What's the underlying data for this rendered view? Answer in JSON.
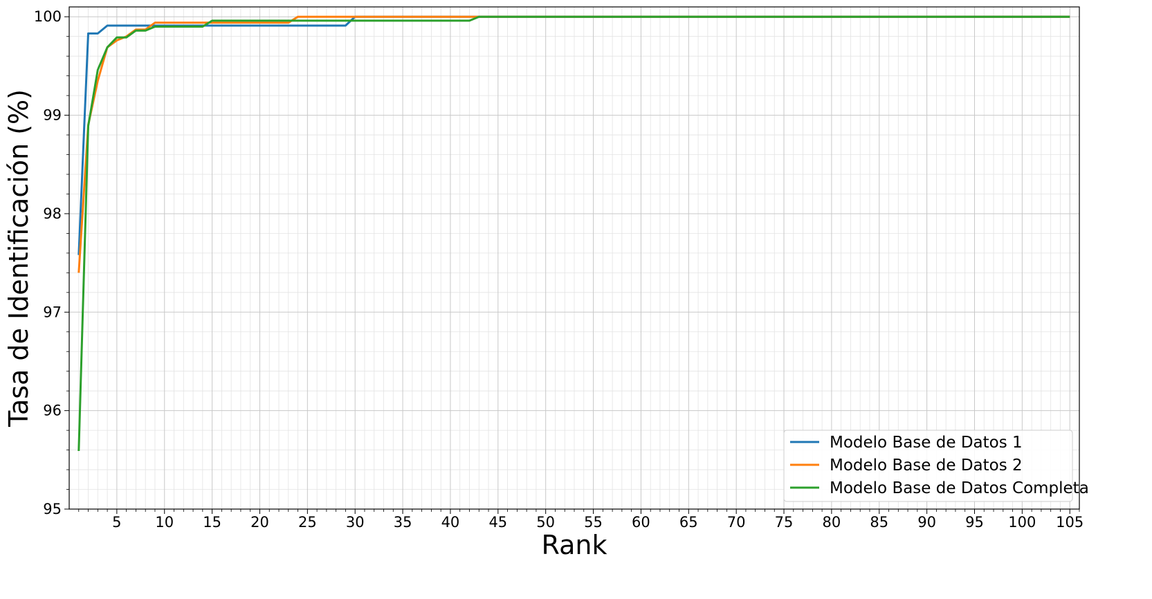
{
  "chart_data": {
    "type": "line",
    "title": "",
    "xlabel": "Rank",
    "ylabel": "Tasa de Identificación (%)",
    "xlim": [
      0,
      106
    ],
    "ylim": [
      95,
      100.1
    ],
    "xticks": [
      "5",
      "10",
      "15",
      "20",
      "25",
      "30",
      "35",
      "40",
      "45",
      "50",
      "55",
      "60",
      "65",
      "70",
      "75",
      "80",
      "85",
      "90",
      "95",
      "100",
      "105"
    ],
    "yticks": [
      "95",
      "96",
      "97",
      "98",
      "99",
      "100"
    ],
    "grid": true,
    "minor_grid": true,
    "legend_position": "lower-right",
    "series": [
      {
        "name": "Modelo Base de Datos 1",
        "color": "#1f77b4",
        "points": [
          [
            1,
            97.58
          ],
          [
            2,
            99.83
          ],
          [
            3,
            99.83
          ],
          [
            4,
            99.91
          ],
          [
            29,
            99.91
          ],
          [
            30,
            100.0
          ],
          [
            105,
            100.0
          ]
        ]
      },
      {
        "name": "Modelo Base de Datos 2",
        "color": "#ff7f0e",
        "points": [
          [
            1,
            97.4
          ],
          [
            2,
            98.9
          ],
          [
            3,
            99.35
          ],
          [
            4,
            99.69
          ],
          [
            5,
            99.76
          ],
          [
            6,
            99.8
          ],
          [
            7,
            99.87
          ],
          [
            8,
            99.87
          ],
          [
            9,
            99.94
          ],
          [
            23,
            99.94
          ],
          [
            24,
            100.0
          ],
          [
            105,
            100.0
          ]
        ]
      },
      {
        "name": "Modelo Base de Datos Completa",
        "color": "#2ca02c",
        "points": [
          [
            1,
            95.59
          ],
          [
            2,
            98.89
          ],
          [
            3,
            99.46
          ],
          [
            4,
            99.69
          ],
          [
            5,
            99.79
          ],
          [
            6,
            99.79
          ],
          [
            7,
            99.86
          ],
          [
            8,
            99.86
          ],
          [
            9,
            99.9
          ],
          [
            14,
            99.9
          ],
          [
            15,
            99.96
          ],
          [
            42,
            99.96
          ],
          [
            43,
            100.0
          ],
          [
            105,
            100.0
          ]
        ]
      }
    ]
  }
}
